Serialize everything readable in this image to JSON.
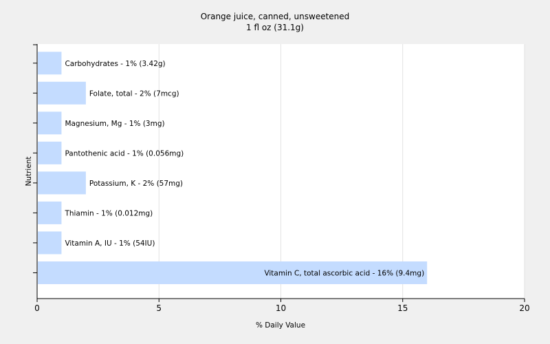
{
  "chart_data": {
    "type": "bar",
    "orientation": "horizontal",
    "title": "Orange juice, canned, unsweetened",
    "subtitle": "1 fl oz (31.1g)",
    "xlabel": "% Daily Value",
    "ylabel": "Nutrient",
    "xlim": [
      0,
      20
    ],
    "xticks": [
      0,
      5,
      10,
      15,
      20
    ],
    "grid": true,
    "bar_color": "#c4dcff",
    "categories": [
      "Carbohydrates",
      "Folate, total",
      "Magnesium, Mg",
      "Pantothenic acid",
      "Potassium, K",
      "Thiamin",
      "Vitamin A, IU",
      "Vitamin C, total ascorbic acid"
    ],
    "values": [
      1,
      2,
      1,
      1,
      2,
      1,
      1,
      16
    ],
    "labels": [
      "Carbohydrates - 1% (3.42g)",
      "Folate, total - 2% (7mcg)",
      "Magnesium, Mg - 1% (3mg)",
      "Pantothenic acid - 1% (0.056mg)",
      "Potassium, K - 2% (57mg)",
      "Thiamin - 1% (0.012mg)",
      "Vitamin A, IU - 1% (54IU)",
      "Vitamin C, total ascorbic acid - 16% (9.4mg)"
    ]
  }
}
